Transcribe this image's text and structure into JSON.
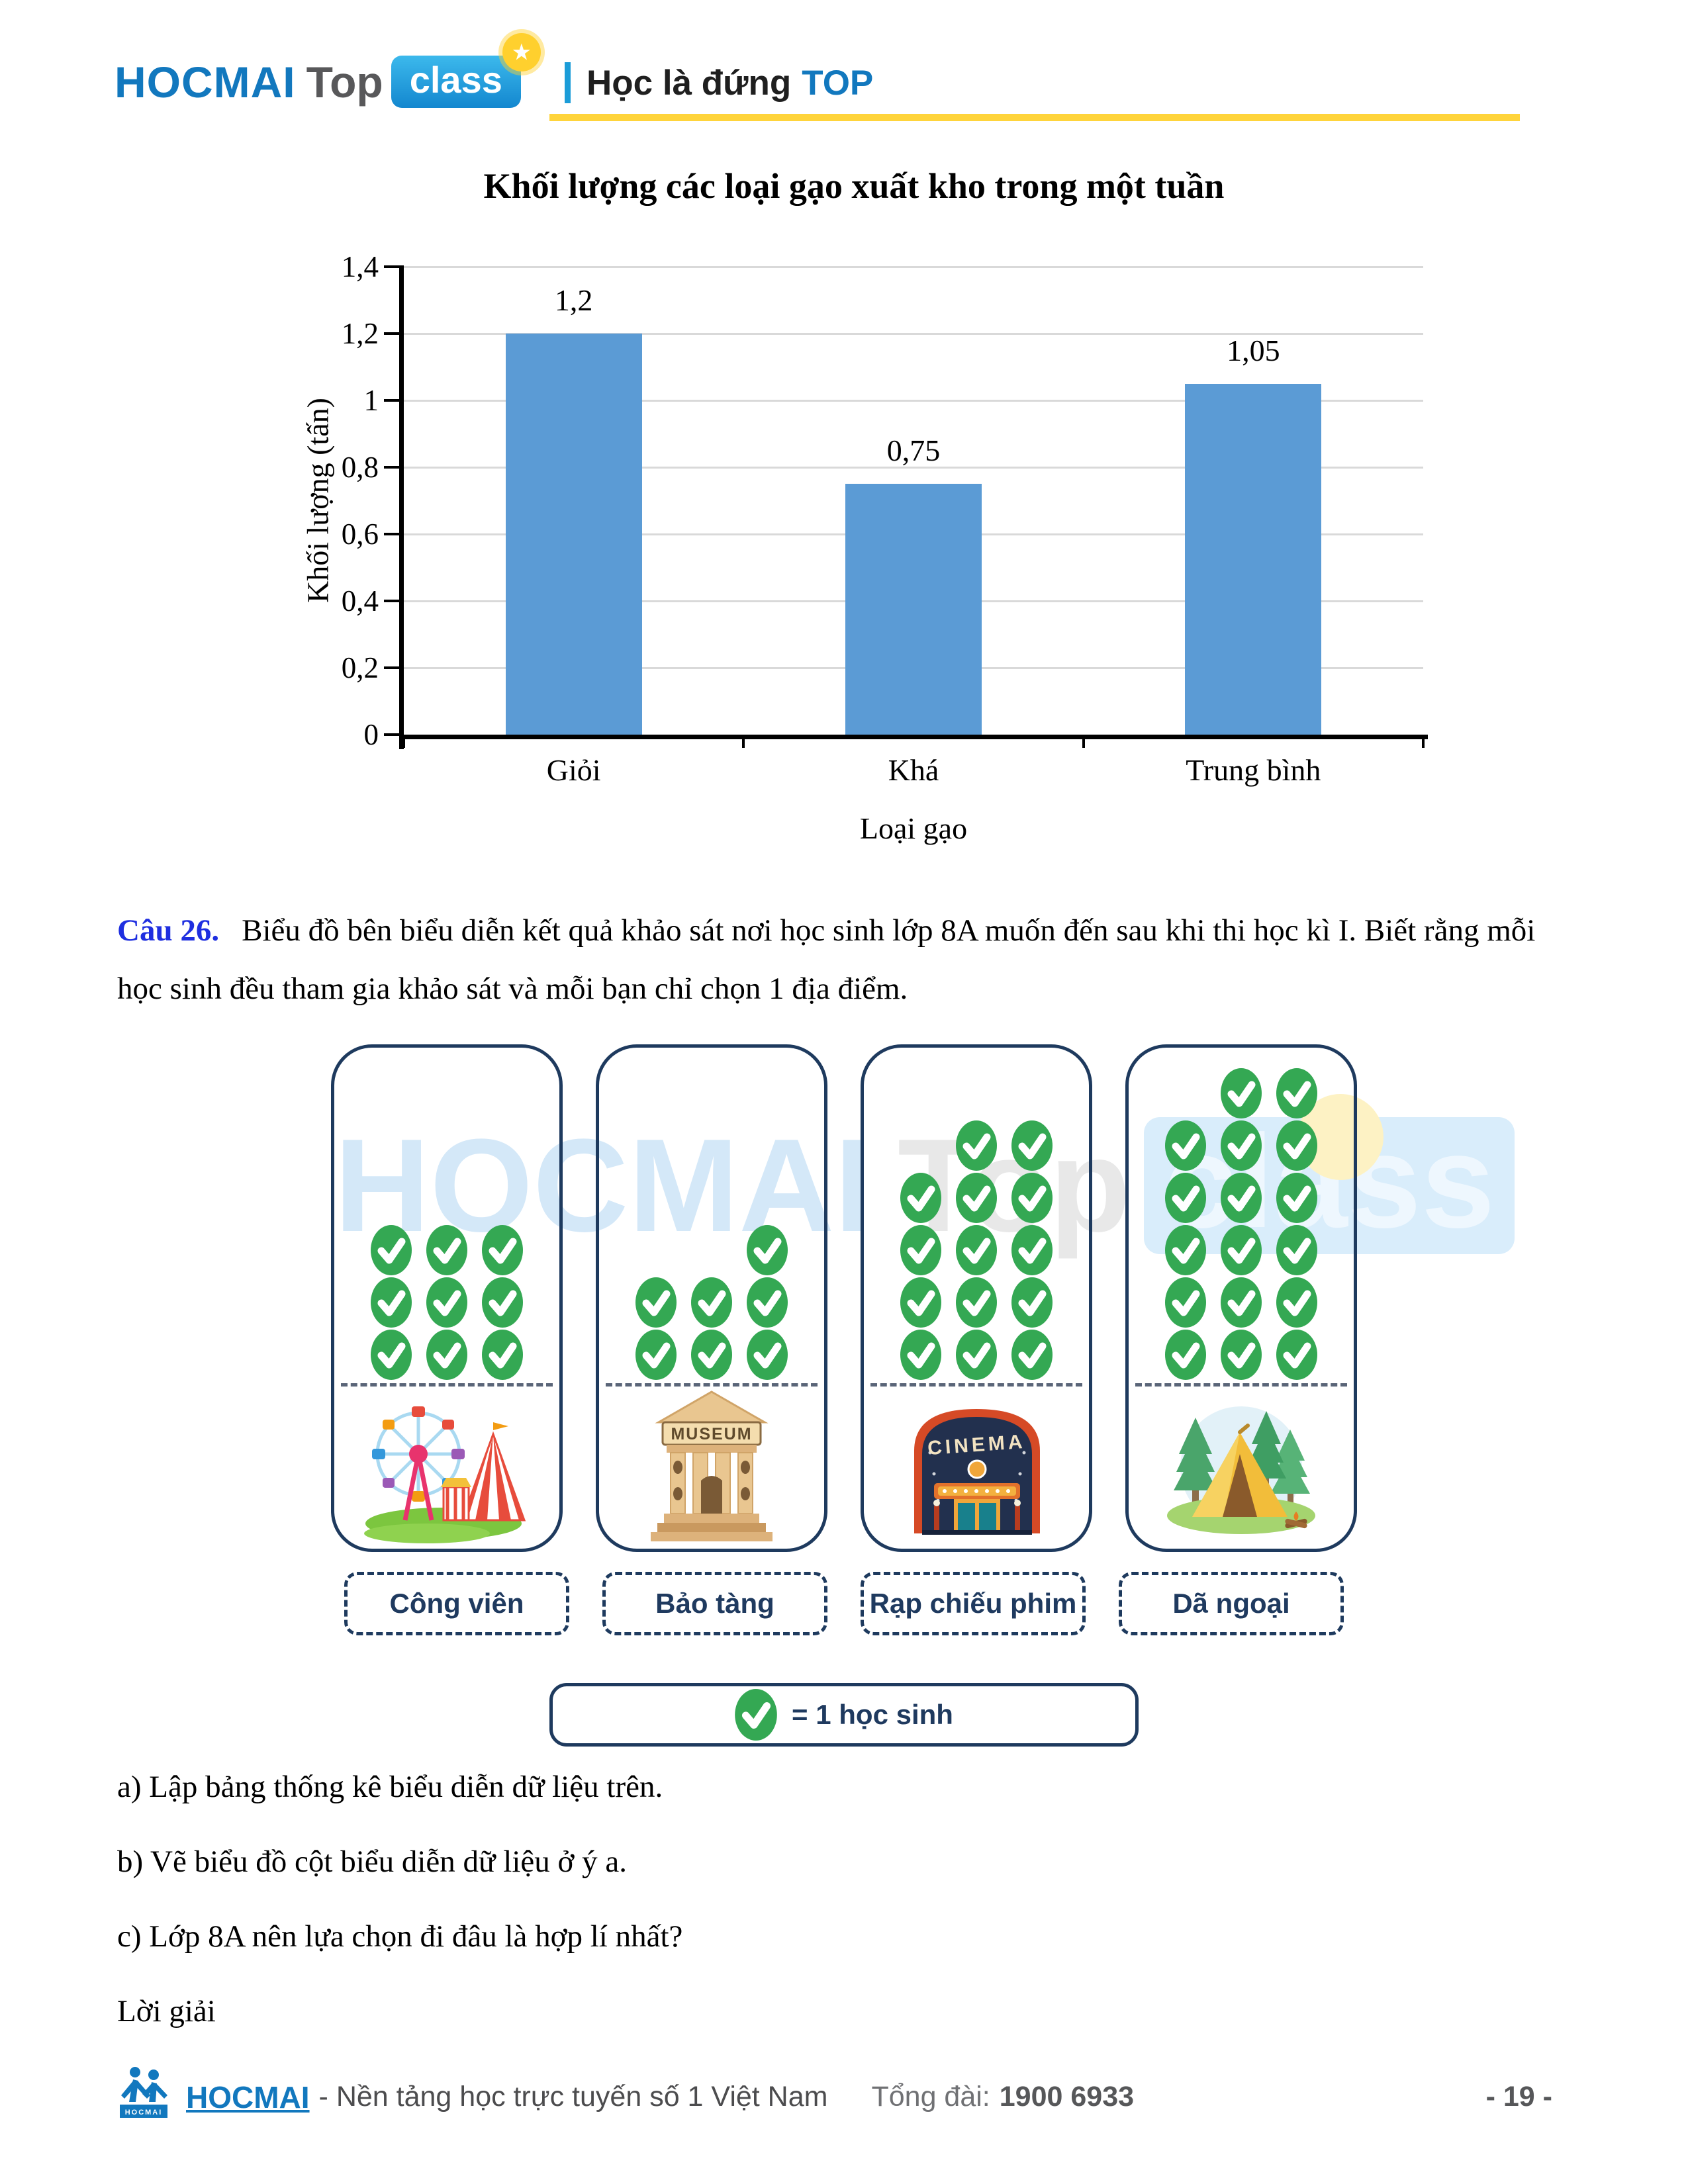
{
  "header": {
    "brand_1": "HOCMAI",
    "brand_2": "Top",
    "brand_3": "class",
    "tagline": "Học là đứng",
    "tagline_highlight": "TOP"
  },
  "chart_data": {
    "type": "bar",
    "title": "Khối lượng các loại gạo xuất kho trong một tuần",
    "categories": [
      "Giỏi",
      "Khá",
      "Trung bình"
    ],
    "values": [
      1.2,
      0.75,
      1.05
    ],
    "value_labels": [
      "1,2",
      "0,75",
      "1,05"
    ],
    "xlabel": "Loại gạo",
    "ylabel": "Khối lượng (tấn)",
    "ylim": [
      0,
      1.4
    ],
    "ytick_step": 0.2,
    "ytick_labels": [
      "0",
      "0,2",
      "0,4",
      "0,6",
      "0,8",
      "1",
      "1,2",
      "1,4"
    ],
    "bar_color": "#5b9bd5",
    "grid": true,
    "legend_position": "none"
  },
  "question": {
    "label": "Câu 26.",
    "text": "Biểu đồ bên biểu diễn kết quả khảo sát nơi học sinh lớp 8A muốn đến sau khi thi học kì I. Biết rằng mỗi học sinh đều tham gia khảo sát và mỗi bạn chỉ chọn 1 địa điểm."
  },
  "pictogram": {
    "check_color": "#34a853",
    "columns": [
      {
        "label": "Công viên",
        "count": 9,
        "icon": "amusement-park"
      },
      {
        "label": "Bảo tàng",
        "count": 7,
        "icon": "museum"
      },
      {
        "label": "Rạp chiếu phim",
        "count": 14,
        "icon": "cinema"
      },
      {
        "label": "Dã ngoại",
        "count": 17,
        "icon": "camping"
      }
    ],
    "icon_texts": {
      "museum": "MUSEUM",
      "cinema": "CINEMA"
    },
    "legend_text": "= 1 học sinh",
    "watermark": {
      "p1": "HOCMAI",
      "p2": "Top",
      "p3": "class"
    }
  },
  "tasks": {
    "a": "a) Lập bảng thống kê biểu diễn dữ liệu trên.",
    "b": "b) Vẽ biểu đồ cột biểu diễn dữ liệu ở ý a.",
    "c": "c) Lớp 8A nên lựa chọn đi đâu là hợp lí nhất?"
  },
  "solution_label": "Lời giải",
  "footer": {
    "logo_text": "HOCMAI",
    "brand": "HOCMAI",
    "desc": "- Nền tảng học trực tuyến số 1 Việt Nam",
    "hotline_label": "Tổng đài:",
    "hotline_number": "1900 6933",
    "page_number": "- 19 -"
  }
}
